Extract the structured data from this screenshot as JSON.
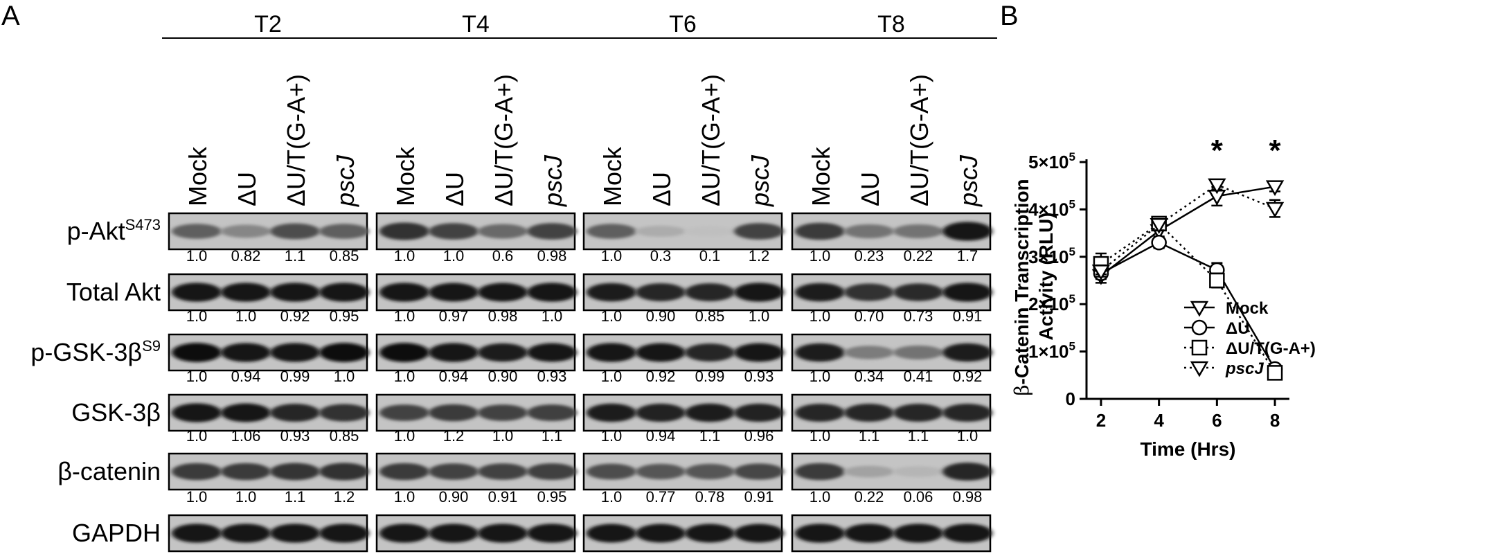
{
  "panel_a": {
    "letter": "A",
    "timepoints": [
      "T2",
      "T4",
      "T6",
      "T8"
    ],
    "lanes": [
      "Mock",
      "ΔU",
      "ΔU/T(G-A+)",
      "pscJ"
    ],
    "rows": [
      {
        "label": "p-Akt",
        "sup": "S473",
        "quant": [
          [
            "1.0",
            "0.82",
            "1.1",
            "0.85"
          ],
          [
            "1.0",
            "1.0",
            "0.6",
            "0.98"
          ],
          [
            "1.0",
            "0.3",
            "0.1",
            "1.2"
          ],
          [
            "1.0",
            "0.23",
            "0.22",
            "1.7"
          ]
        ]
      },
      {
        "label": "Total Akt",
        "sup": "",
        "quant": [
          [
            "1.0",
            "1.0",
            "0.92",
            "0.95"
          ],
          [
            "1.0",
            "0.97",
            "0.98",
            "1.0"
          ],
          [
            "1.0",
            "0.90",
            "0.85",
            "1.0"
          ],
          [
            "1.0",
            "0.70",
            "0.73",
            "0.91"
          ]
        ]
      },
      {
        "label": "p-GSK-3β",
        "sup": "S9",
        "quant": [
          [
            "1.0",
            "0.94",
            "0.99",
            "1.0"
          ],
          [
            "1.0",
            "0.94",
            "0.90",
            "0.93"
          ],
          [
            "1.0",
            "0.92",
            "0.99",
            "0.93"
          ],
          [
            "1.0",
            "0.34",
            "0.41",
            "0.92"
          ]
        ]
      },
      {
        "label": "GSK-3β",
        "sup": "",
        "quant": [
          [
            "1.0",
            "1.06",
            "0.93",
            "0.85"
          ],
          [
            "1.0",
            "1.2",
            "1.0",
            "1.1"
          ],
          [
            "1.0",
            "0.94",
            "1.1",
            "0.96"
          ],
          [
            "1.0",
            "1.1",
            "1.1",
            "1.0"
          ]
        ]
      },
      {
        "label": "β-catenin",
        "sup": "",
        "quant": [
          [
            "1.0",
            "1.0",
            "1.1",
            "1.2"
          ],
          [
            "1.0",
            "0.90",
            "0.91",
            "0.95"
          ],
          [
            "1.0",
            "0.77",
            "0.78",
            "0.91"
          ],
          [
            "1.0",
            "0.22",
            "0.06",
            "0.98"
          ]
        ]
      },
      {
        "label": "GAPDH",
        "sup": "",
        "quant": null
      }
    ]
  },
  "panel_b": {
    "letter": "B",
    "chart_data": {
      "type": "line",
      "xlabel": "Time (Hrs)",
      "ylabel_prefix": "β",
      "ylabel_line1": "-Catenin Transcription",
      "ylabel_line2": "Activity (RLU)",
      "x": [
        2,
        4,
        6,
        8
      ],
      "xticks": [
        "2",
        "4",
        "6",
        "8"
      ],
      "ylim": [
        0,
        500000
      ],
      "yticks": [
        {
          "value": 0,
          "base": "0",
          "exp": ""
        },
        {
          "value": 100000,
          "base": "1×10",
          "exp": "5"
        },
        {
          "value": 200000,
          "base": "2×10",
          "exp": "5"
        },
        {
          "value": 300000,
          "base": "3×10",
          "exp": "5"
        },
        {
          "value": 400000,
          "base": "4×10",
          "exp": "5"
        },
        {
          "value": 500000,
          "base": "5×10",
          "exp": "5"
        }
      ],
      "series": [
        {
          "name": "Mock",
          "marker": "triangle-down",
          "dash": "solid",
          "values": [
            260000,
            355000,
            428000,
            448000
          ],
          "errors": [
            15000,
            12000,
            20000,
            10000
          ]
        },
        {
          "name": "ΔU",
          "marker": "circle",
          "dash": "solid",
          "values": [
            265000,
            330000,
            272000,
            63000
          ],
          "errors": [
            12000,
            12000,
            15000,
            7000
          ]
        },
        {
          "name": "ΔU/T(G-A+)",
          "marker": "square",
          "dash": "dotted",
          "values": [
            285000,
            370000,
            250000,
            55000
          ],
          "errors": [
            22000,
            10000,
            15000,
            6000
          ]
        },
        {
          "name": "pscJ",
          "marker": "triangle-down",
          "dash": "dotted",
          "values": [
            270000,
            368000,
            452000,
            402000
          ],
          "errors": [
            12000,
            12000,
            10000,
            18000
          ]
        }
      ],
      "significance": [
        {
          "x": 6,
          "label": "*"
        },
        {
          "x": 8,
          "label": "*"
        }
      ],
      "legend_placement": "lower-left"
    }
  }
}
